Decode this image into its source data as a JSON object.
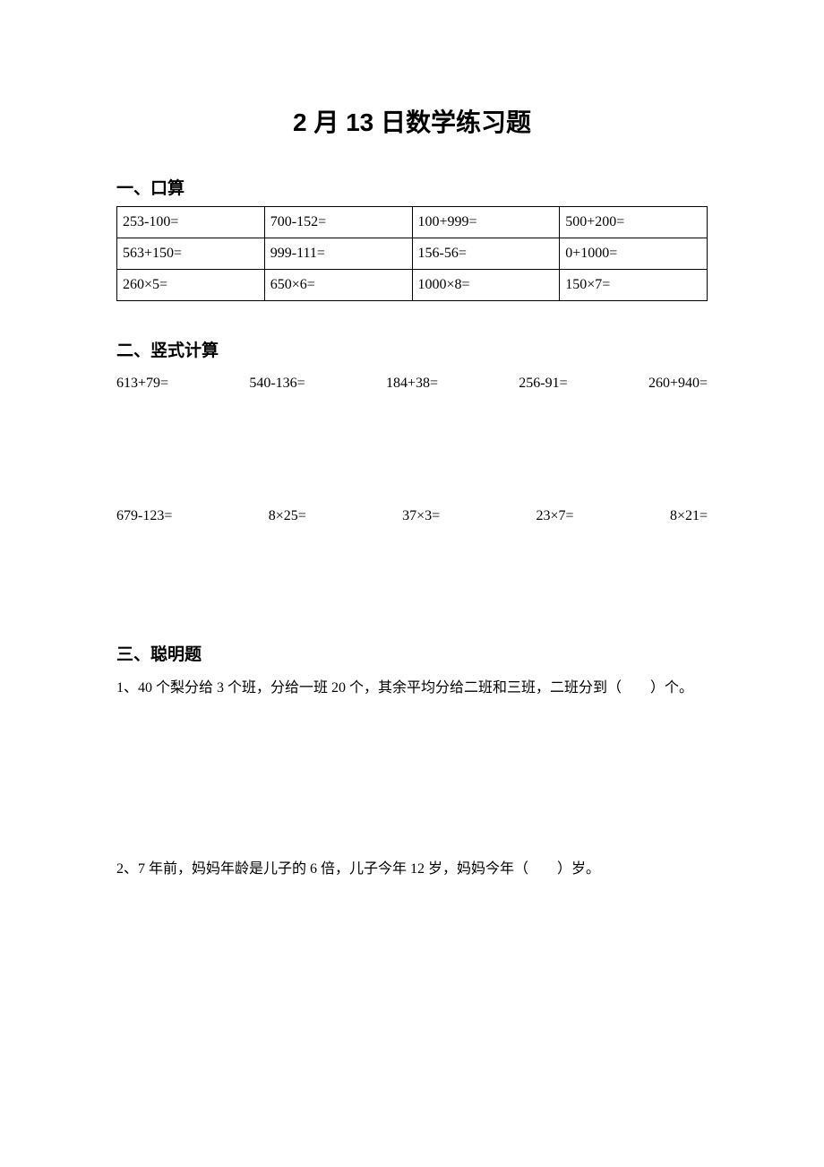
{
  "title": "2 月 13 日数学练习题",
  "section1": {
    "heading": "一、口算",
    "table": {
      "columns": 4,
      "rows": [
        [
          "253-100=",
          "700-152=",
          "100+999=",
          "500+200="
        ],
        [
          "563+150=",
          "999-111=",
          "156-56=",
          "0+1000="
        ],
        [
          "260×5=",
          "650×6=",
          "1000×8=",
          "150×7="
        ]
      ],
      "border_color": "#000000",
      "cell_fontsize": 16
    }
  },
  "section2": {
    "heading": "二、竖式计算",
    "row1": [
      "613+79=",
      "540-136=",
      "184+38=",
      "256-91=",
      "260+940="
    ],
    "row2": [
      "679-123=",
      "8×25=",
      "37×3=",
      "23×7=",
      "8×21="
    ]
  },
  "section3": {
    "heading": "三、聪明题",
    "q1": "1、40 个梨分给 3 个班，分给一班 20 个，其余平均分给二班和三班，二班分到（　　）个。",
    "q2": "2、7 年前，妈妈年龄是儿子的 6 倍，儿子今年 12 岁，妈妈今年（　　）岁。"
  },
  "style": {
    "background_color": "#ffffff",
    "title_fontsize": 28,
    "heading_fontsize": 19,
    "body_fontsize": 16
  }
}
